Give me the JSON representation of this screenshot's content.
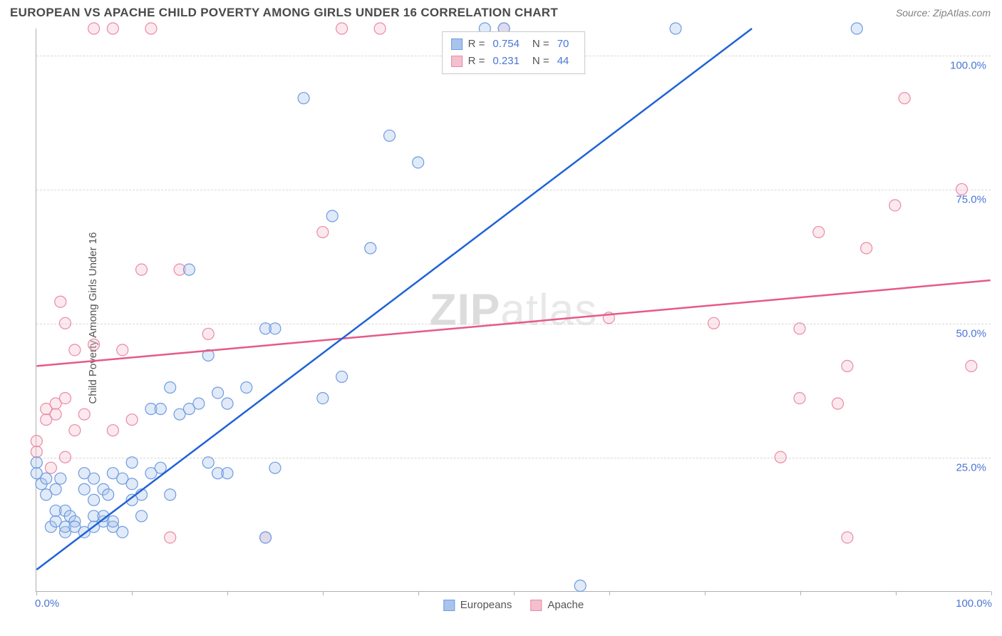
{
  "header": {
    "title": "EUROPEAN VS APACHE CHILD POVERTY AMONG GIRLS UNDER 16 CORRELATION CHART",
    "source_prefix": "Source: ",
    "source": "ZipAtlas.com"
  },
  "chart": {
    "type": "scatter",
    "ylabel": "Child Poverty Among Girls Under 16",
    "xlim": [
      0,
      100
    ],
    "ylim": [
      0,
      105
    ],
    "xtick_positions": [
      0,
      10,
      20,
      30,
      40,
      50,
      60,
      70,
      80,
      90,
      100
    ],
    "xtick_labels": {
      "min": "0.0%",
      "max": "100.0%"
    },
    "ytick_positions": [
      25,
      50,
      75,
      100
    ],
    "ytick_labels": [
      "25.0%",
      "50.0%",
      "75.0%",
      "100.0%"
    ],
    "grid_color": "#d8d8d8",
    "axis_color": "#b0b0b0",
    "background_color": "#ffffff",
    "marker_radius": 8,
    "marker_radius_small": 6,
    "marker_fill_opacity": 0.35,
    "marker_stroke_width": 1.2,
    "line_width": 2.5,
    "watermark": "ZIPatlas",
    "series": {
      "europeans": {
        "label": "Europeans",
        "color_fill": "#a9c4ec",
        "color_stroke": "#6d9be0",
        "line_color": "#1f63d6",
        "R": "0.754",
        "N": "70",
        "regression": {
          "x1": 0,
          "y1": 4,
          "x2": 75,
          "y2": 105
        },
        "points": [
          [
            0,
            22
          ],
          [
            0,
            24
          ],
          [
            0.5,
            20
          ],
          [
            1,
            18
          ],
          [
            1,
            21
          ],
          [
            1.5,
            12
          ],
          [
            2,
            13
          ],
          [
            2,
            15
          ],
          [
            2,
            19
          ],
          [
            2.5,
            21
          ],
          [
            3,
            11
          ],
          [
            3,
            12
          ],
          [
            3,
            15
          ],
          [
            3.5,
            14
          ],
          [
            4,
            13
          ],
          [
            4,
            12
          ],
          [
            5,
            11
          ],
          [
            5,
            19
          ],
          [
            5,
            22
          ],
          [
            6,
            12
          ],
          [
            6,
            14
          ],
          [
            6,
            17
          ],
          [
            6,
            21
          ],
          [
            7,
            13
          ],
          [
            7,
            14
          ],
          [
            7,
            19
          ],
          [
            7.5,
            18
          ],
          [
            8,
            12
          ],
          [
            8,
            13
          ],
          [
            8,
            22
          ],
          [
            9,
            11
          ],
          [
            9,
            21
          ],
          [
            10,
            17
          ],
          [
            10,
            20
          ],
          [
            10,
            24
          ],
          [
            11,
            14
          ],
          [
            11,
            18
          ],
          [
            12,
            22
          ],
          [
            12,
            34
          ],
          [
            13,
            23
          ],
          [
            13,
            34
          ],
          [
            14,
            18
          ],
          [
            14,
            38
          ],
          [
            15,
            33
          ],
          [
            16,
            34
          ],
          [
            16,
            60
          ],
          [
            17,
            35
          ],
          [
            18,
            24
          ],
          [
            18,
            44
          ],
          [
            19,
            22
          ],
          [
            19,
            37
          ],
          [
            20,
            22
          ],
          [
            20,
            35
          ],
          [
            22,
            38
          ],
          [
            24,
            10
          ],
          [
            24,
            49
          ],
          [
            25,
            49
          ],
          [
            25,
            23
          ],
          [
            28,
            92
          ],
          [
            30,
            36
          ],
          [
            31,
            70
          ],
          [
            32,
            40
          ],
          [
            35,
            64
          ],
          [
            37,
            85
          ],
          [
            40,
            80
          ],
          [
            47,
            105
          ],
          [
            49,
            105
          ],
          [
            57,
            1
          ],
          [
            67,
            105
          ],
          [
            86,
            105
          ]
        ]
      },
      "apache": {
        "label": "Apache",
        "color_fill": "#f3c0ce",
        "color_stroke": "#e98aa5",
        "line_color": "#e65a86",
        "R": "0.231",
        "N": "44",
        "regression": {
          "x1": 0,
          "y1": 42,
          "x2": 100,
          "y2": 58
        },
        "points": [
          [
            0,
            26
          ],
          [
            0,
            28
          ],
          [
            1,
            32
          ],
          [
            1,
            34
          ],
          [
            1.5,
            23
          ],
          [
            2,
            35
          ],
          [
            2,
            33
          ],
          [
            2.5,
            54
          ],
          [
            3,
            36
          ],
          [
            3,
            25
          ],
          [
            3,
            50
          ],
          [
            4,
            45
          ],
          [
            4,
            30
          ],
          [
            5,
            33
          ],
          [
            6,
            46
          ],
          [
            6,
            105
          ],
          [
            8,
            105
          ],
          [
            8,
            30
          ],
          [
            9,
            45
          ],
          [
            10,
            32
          ],
          [
            11,
            60
          ],
          [
            12,
            105
          ],
          [
            14,
            10
          ],
          [
            15,
            60
          ],
          [
            18,
            48
          ],
          [
            24,
            10
          ],
          [
            30,
            67
          ],
          [
            32,
            105
          ],
          [
            36,
            105
          ],
          [
            49,
            105
          ],
          [
            60,
            51
          ],
          [
            71,
            50
          ],
          [
            78,
            25
          ],
          [
            80,
            36
          ],
          [
            80,
            49
          ],
          [
            82,
            67
          ],
          [
            84,
            35
          ],
          [
            85,
            42
          ],
          [
            85,
            10
          ],
          [
            87,
            64
          ],
          [
            90,
            72
          ],
          [
            91,
            92
          ],
          [
            97,
            75
          ],
          [
            98,
            42
          ]
        ]
      }
    }
  },
  "legend_top": {
    "R_label": "R =",
    "N_label": "N ="
  }
}
